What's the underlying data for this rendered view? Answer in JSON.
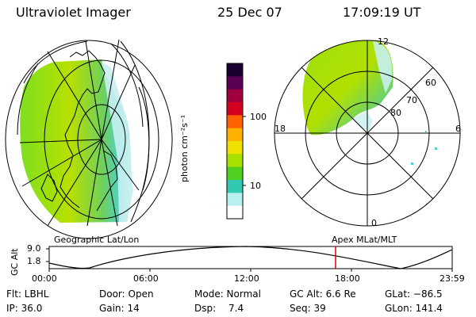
{
  "header": {
    "instrument": "Ultraviolet Imager",
    "date": "25 Dec 07",
    "time": "17:09:19 UT"
  },
  "colorbar": {
    "label": "photon cm⁻²s⁻¹",
    "ticks": [
      "100",
      "10"
    ],
    "colors": [
      "#1a0030",
      "#5a0050",
      "#a00040",
      "#d40020",
      "#ff6000",
      "#ffb000",
      "#f0e000",
      "#a8e000",
      "#50d020",
      "#30c8b0",
      "#b8f0f0",
      "#ffffff"
    ]
  },
  "polar": {
    "lat_labels": [
      "80",
      "70",
      "60"
    ],
    "mlt_labels": [
      "12",
      "18",
      "6",
      "0"
    ]
  },
  "timeline": {
    "left_label": "Geographic Lat/Lon",
    "right_label": "Apex MLat/MLT",
    "y_title": "GC Alt",
    "y_ticks": [
      "9.0",
      "1.8"
    ],
    "x_ticks": [
      "00:00",
      "06:00",
      "12:00",
      "18:00",
      "23:59"
    ],
    "cursor_color": "#e00000"
  },
  "info": {
    "flt": "Flt: LBHL",
    "door": "Door: Open",
    "mode": "Mode: Normal",
    "gcalt": "GC Alt: 6.6 Re",
    "glat": "GLat: −86.5",
    "ip": "IP: 36.0",
    "gain": "Gain: 14",
    "dsp_label": "Dsp:",
    "dsp_value": "7.4",
    "seq": "Seq: 39",
    "glon": "GLon: 141.4"
  }
}
